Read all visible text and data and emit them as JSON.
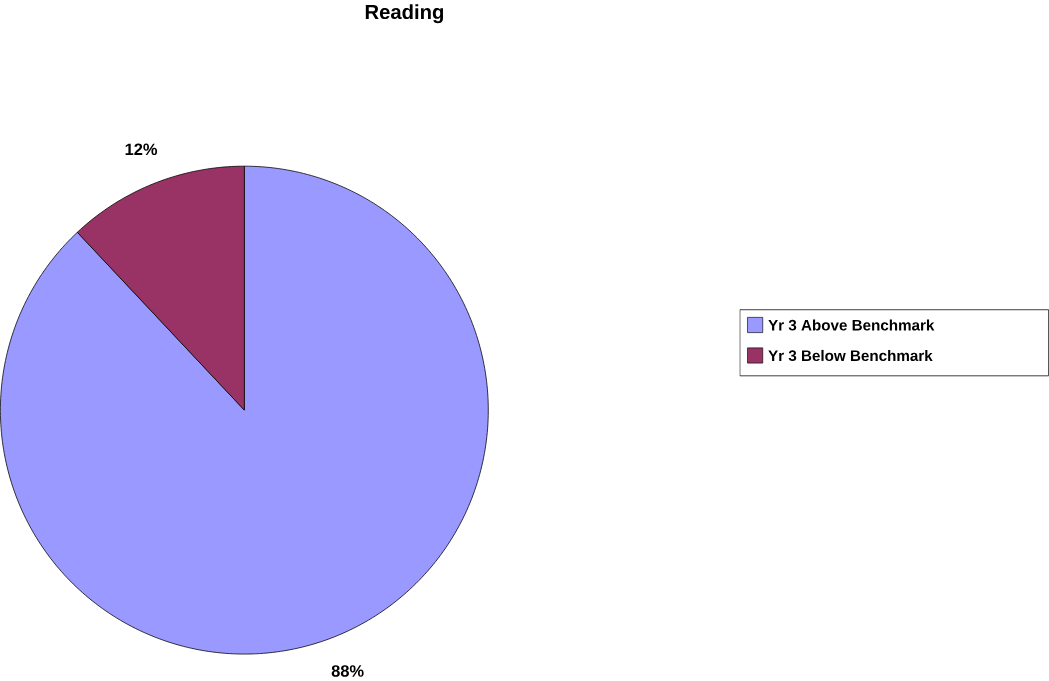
{
  "chart_data": {
    "type": "pie",
    "title": "Reading",
    "categories": [
      "Yr 3 Above Benchmark",
      "Yr 3 Below Benchmark"
    ],
    "values": [
      88,
      12
    ],
    "colors": [
      "#9999ff",
      "#993366"
    ],
    "value_labels": [
      "88%",
      "12%"
    ],
    "legend": "right"
  }
}
